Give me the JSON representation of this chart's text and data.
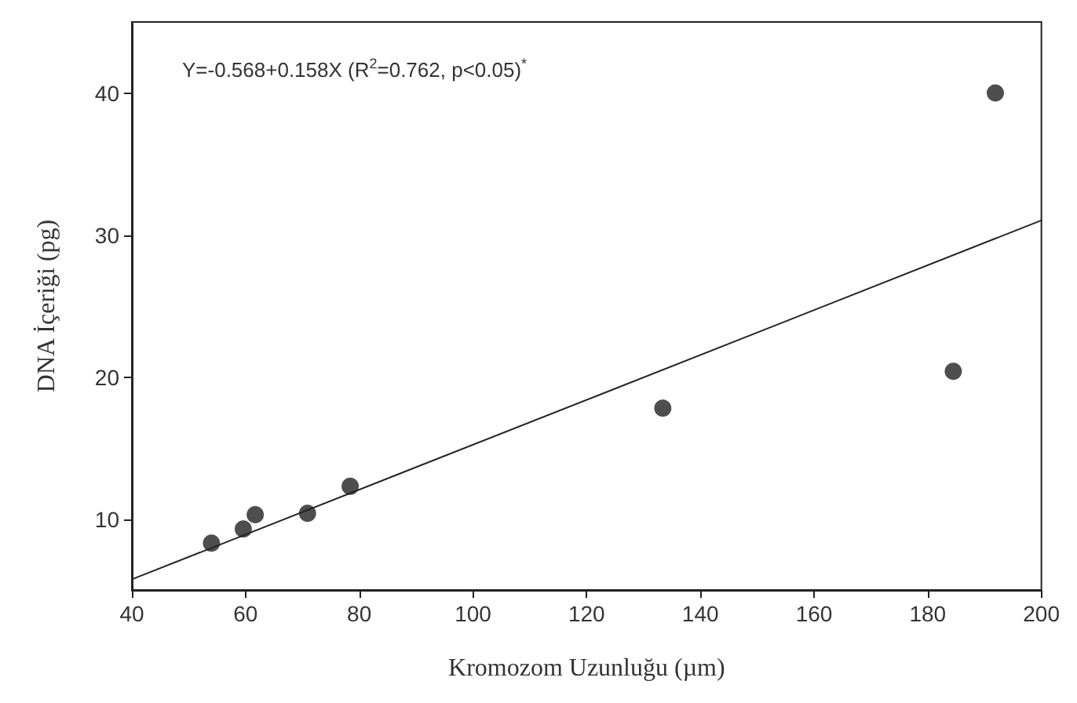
{
  "chart_data": {
    "type": "scatter",
    "xlabel": "Kromozom Uzunluğu (µm)",
    "ylabel": "DNA İçeriği (pg)",
    "annotations": [
      "Y=-0.568+0.158X (R$^{2}$=0.762, p<0.05)$^{*}$"
    ],
    "series": [
      {
        "x": [
          54,
          59.6,
          61.7,
          70.9,
          78.4,
          133.4,
          184.5,
          191.9
        ],
        "values": [
          8.3,
          9.3,
          10.3,
          10.4,
          12.3,
          17.8,
          20.4,
          40.0
        ],
        "color": "#222222",
        "marker": "circle"
      },
      {
        "type": "line",
        "x": [
          40,
          200
        ],
        "values": [
          5.75,
          31.03
        ],
        "color": "#222222",
        "marker": "none",
        "line_style": "solid"
      }
    ],
    "xlim": [
      40,
      200
    ],
    "xticks": [
      40,
      60,
      80,
      100,
      120,
      140,
      160,
      180,
      200
    ],
    "ylim": [
      5,
      45
    ],
    "yticks": [
      10,
      20,
      30,
      40
    ],
    "grid": false
  }
}
